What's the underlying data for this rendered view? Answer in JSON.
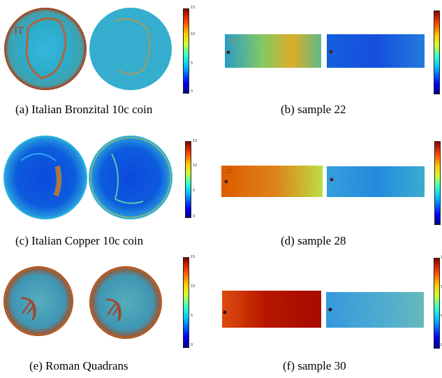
{
  "figure": {
    "panels": [
      {
        "id": "a",
        "caption": "(a)  Italian Bronzital 10c coin",
        "colorbar_ticks": [
          "15",
          "10",
          "5",
          "0"
        ],
        "left_text": "IT"
      },
      {
        "id": "b",
        "caption": "(b)  sample 22",
        "colorbar_ticks": [
          "",
          ""
        ],
        "left_text": "II"
      },
      {
        "id": "c",
        "caption": "(c)  Italian Copper 10c coin",
        "colorbar_ticks": [
          "15",
          "10",
          "5",
          "0"
        ]
      },
      {
        "id": "d",
        "caption": "(d)  sample 28",
        "colorbar_ticks": [
          "1",
          "",
          "",
          ""
        ],
        "left_text": "IT"
      },
      {
        "id": "e",
        "caption": "(e)  Roman Quadrans",
        "colorbar_ticks": [
          "15",
          "10",
          "5",
          "0"
        ]
      },
      {
        "id": "f",
        "caption": "(f)  sample 30",
        "colorbar_ticks": [
          "15",
          "10",
          "5",
          "0"
        ]
      }
    ]
  },
  "colors": {
    "jet_dark_blue": "#00008b",
    "jet_blue": "#0000ff",
    "jet_cyan": "#00bfff",
    "jet_green": "#33ffcc",
    "jet_yellow": "#ffcc00",
    "jet_orange": "#ff4500",
    "jet_dark_red": "#8b0000"
  }
}
